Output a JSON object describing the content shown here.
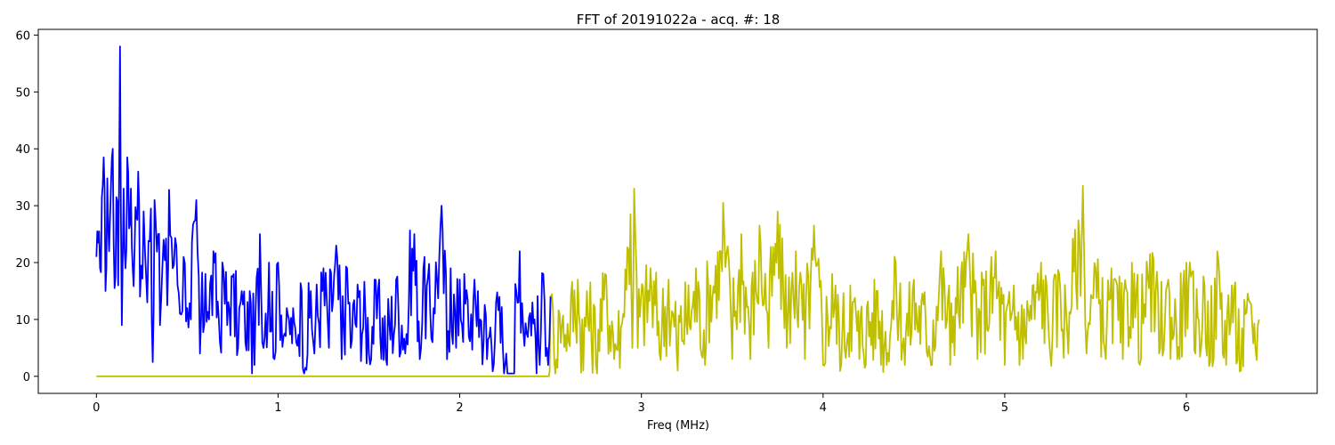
{
  "chart_data": {
    "type": "line",
    "title": "FFT of 20191022a - acq. #: 18",
    "xlabel": "Freq (MHz)",
    "ylabel": "",
    "xlim": [
      -0.32,
      6.72
    ],
    "ylim": [
      -3.0,
      61.0
    ],
    "xticks": [
      0,
      1,
      2,
      3,
      4,
      5,
      6
    ],
    "yticks": [
      0,
      10,
      20,
      30,
      40,
      50,
      60
    ],
    "grid": false,
    "legend": "none",
    "series": [
      {
        "color": "#0000ff",
        "x_range": [
          0,
          2.5
        ],
        "anchors": [
          [
            0.0,
            21.0
          ],
          [
            0.01,
            23.5
          ],
          [
            0.02,
            19.0
          ],
          [
            0.03,
            31.5
          ],
          [
            0.04,
            38.5
          ],
          [
            0.05,
            15.0
          ],
          [
            0.06,
            34.8
          ],
          [
            0.07,
            22.0
          ],
          [
            0.08,
            33.5
          ],
          [
            0.09,
            40.0
          ],
          [
            0.1,
            15.5
          ],
          [
            0.11,
            31.5
          ],
          [
            0.12,
            16.0
          ],
          [
            0.13,
            58.0
          ],
          [
            0.14,
            9.0
          ],
          [
            0.15,
            33.0
          ],
          [
            0.16,
            19.0
          ],
          [
            0.17,
            38.5
          ],
          [
            0.18,
            26.0
          ],
          [
            0.19,
            33.0
          ],
          [
            0.2,
            19.0
          ],
          [
            0.21,
            22.0
          ],
          [
            0.22,
            28.0
          ],
          [
            0.23,
            36.0
          ],
          [
            0.24,
            14.0
          ],
          [
            0.26,
            29.0
          ],
          [
            0.28,
            13.0
          ],
          [
            0.3,
            29.5
          ],
          [
            0.31,
            2.5
          ],
          [
            0.32,
            31.0
          ],
          [
            0.34,
            25.0
          ],
          [
            0.35,
            9.0
          ],
          [
            0.37,
            24.0
          ],
          [
            0.39,
            12.5
          ],
          [
            0.4,
            32.8
          ],
          [
            0.42,
            19.0
          ],
          [
            0.44,
            23.0
          ],
          [
            0.46,
            11.0
          ],
          [
            0.48,
            21.0
          ],
          [
            0.5,
            12.0
          ],
          [
            0.52,
            10.0
          ],
          [
            0.55,
            31.0
          ],
          [
            0.57,
            4.0
          ],
          [
            0.6,
            18.0
          ],
          [
            0.62,
            10.0
          ],
          [
            0.65,
            20.0
          ],
          [
            0.68,
            6.0
          ],
          [
            0.7,
            18.5
          ],
          [
            0.72,
            9.0
          ],
          [
            0.75,
            17.5
          ],
          [
            0.78,
            5.0
          ],
          [
            0.8,
            15.0
          ],
          [
            0.82,
            6.0
          ],
          [
            0.85,
            13.0
          ],
          [
            0.87,
            2.0
          ],
          [
            0.9,
            25.0
          ],
          [
            0.92,
            5.0
          ],
          [
            0.95,
            20.0
          ],
          [
            0.98,
            3.0
          ],
          [
            1.0,
            20.0
          ],
          [
            1.03,
            7.0
          ],
          [
            1.06,
            10.0
          ],
          [
            1.1,
            6.0
          ],
          [
            1.13,
            15.0
          ],
          [
            1.15,
            1.5
          ],
          [
            1.18,
            15.0
          ],
          [
            1.2,
            4.0
          ],
          [
            1.25,
            19.0
          ],
          [
            1.28,
            5.0
          ],
          [
            1.32,
            23.0
          ],
          [
            1.35,
            3.0
          ],
          [
            1.38,
            19.0
          ],
          [
            1.4,
            5.0
          ],
          [
            1.45,
            15.0
          ],
          [
            1.5,
            4.0
          ],
          [
            1.55,
            15.0
          ],
          [
            1.6,
            2.0
          ],
          [
            1.65,
            17.0
          ],
          [
            1.7,
            4.0
          ],
          [
            1.72,
            13.0
          ],
          [
            1.75,
            25.0
          ],
          [
            1.78,
            3.0
          ],
          [
            1.8,
            19.0
          ],
          [
            1.85,
            6.0
          ],
          [
            1.9,
            30.0
          ],
          [
            1.93,
            3.0
          ],
          [
            1.95,
            19.0
          ],
          [
            1.98,
            5.0
          ],
          [
            2.0,
            17.0
          ],
          [
            2.05,
            7.0
          ],
          [
            2.1,
            15.0
          ],
          [
            2.15,
            3.0
          ],
          [
            2.2,
            13.0
          ],
          [
            2.25,
            2.0
          ],
          [
            2.3,
            0.5
          ],
          [
            2.33,
            22.0
          ],
          [
            2.35,
            8.0
          ],
          [
            2.4,
            13.0
          ],
          [
            2.44,
            2.0
          ],
          [
            2.46,
            18.0
          ],
          [
            2.48,
            5.0
          ],
          [
            2.5,
            14.0
          ]
        ]
      },
      {
        "color": "#bfbf00",
        "x_range": [
          0,
          6.4
        ],
        "anchors": [
          [
            0.0,
            0.0
          ],
          [
            2.49,
            0.0
          ],
          [
            2.5,
            14.0
          ],
          [
            2.52,
            3.0
          ],
          [
            2.55,
            11.0
          ],
          [
            2.6,
            6.0
          ],
          [
            2.65,
            17.0
          ],
          [
            2.68,
            1.0
          ],
          [
            2.7,
            15.0
          ],
          [
            2.75,
            2.0
          ],
          [
            2.8,
            18.0
          ],
          [
            2.85,
            3.0
          ],
          [
            2.9,
            11.0
          ],
          [
            2.94,
            28.5
          ],
          [
            2.95,
            5.0
          ],
          [
            2.96,
            33.0
          ],
          [
            2.98,
            5.0
          ],
          [
            3.05,
            19.0
          ],
          [
            3.1,
            4.0
          ],
          [
            3.15,
            17.0
          ],
          [
            3.2,
            1.0
          ],
          [
            3.3,
            19.0
          ],
          [
            3.35,
            2.0
          ],
          [
            3.45,
            30.5
          ],
          [
            3.5,
            3.0
          ],
          [
            3.55,
            25.0
          ],
          [
            3.6,
            3.0
          ],
          [
            3.65,
            26.5
          ],
          [
            3.7,
            5.0
          ],
          [
            3.75,
            29.0
          ],
          [
            3.8,
            5.0
          ],
          [
            3.85,
            22.0
          ],
          [
            3.9,
            3.0
          ],
          [
            3.95,
            26.5
          ],
          [
            4.0,
            2.0
          ],
          [
            4.05,
            18.0
          ],
          [
            4.1,
            2.0
          ],
          [
            4.15,
            16.0
          ],
          [
            4.2,
            3.0
          ],
          [
            4.3,
            15.0
          ],
          [
            4.35,
            2.0
          ],
          [
            4.4,
            20.0
          ],
          [
            4.45,
            2.0
          ],
          [
            4.5,
            17.0
          ],
          [
            4.6,
            2.0
          ],
          [
            4.65,
            22.0
          ],
          [
            4.7,
            2.0
          ],
          [
            4.8,
            25.0
          ],
          [
            4.85,
            3.0
          ],
          [
            4.95,
            22.0
          ],
          [
            5.0,
            2.0
          ],
          [
            5.05,
            16.0
          ],
          [
            5.1,
            3.0
          ],
          [
            5.2,
            20.0
          ],
          [
            5.25,
            4.0
          ],
          [
            5.3,
            18.0
          ],
          [
            5.35,
            4.0
          ],
          [
            5.43,
            33.5
          ],
          [
            5.45,
            4.0
          ],
          [
            5.5,
            19.0
          ],
          [
            5.55,
            5.0
          ],
          [
            5.6,
            17.0
          ],
          [
            5.65,
            3.0
          ],
          [
            5.7,
            20.0
          ],
          [
            5.75,
            3.0
          ],
          [
            5.8,
            21.5
          ],
          [
            5.85,
            4.0
          ],
          [
            5.9,
            17.0
          ],
          [
            5.95,
            3.0
          ],
          [
            6.0,
            20.0
          ],
          [
            6.05,
            4.0
          ],
          [
            6.1,
            16.0
          ],
          [
            6.15,
            3.0
          ],
          [
            6.17,
            22.0
          ],
          [
            6.2,
            4.0
          ],
          [
            6.25,
            16.0
          ],
          [
            6.3,
            1.0
          ],
          [
            6.35,
            13.0
          ],
          [
            6.38,
            5.0
          ],
          [
            6.4,
            10.0
          ]
        ]
      }
    ]
  }
}
